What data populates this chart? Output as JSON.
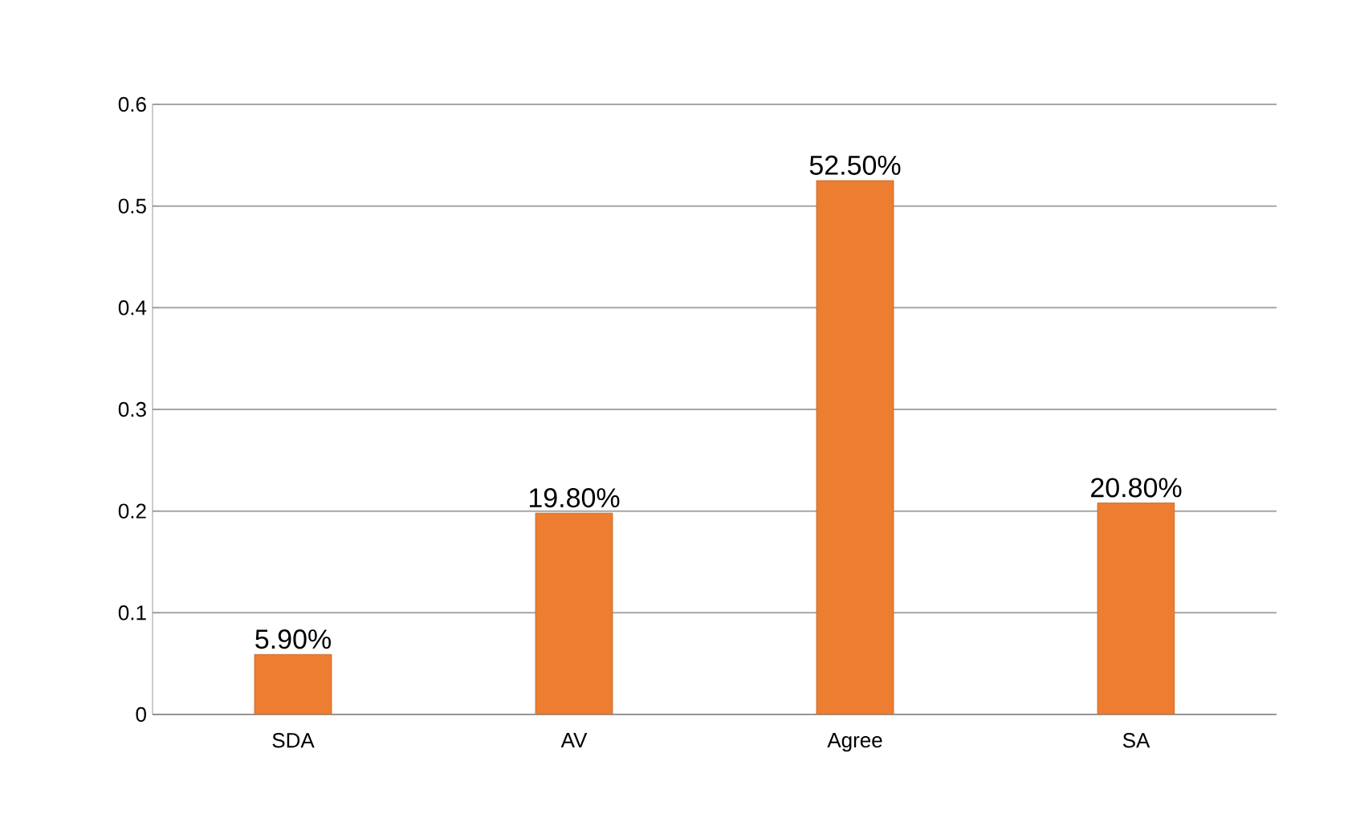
{
  "chart_data": {
    "type": "bar",
    "categories": [
      "SDA",
      "AV",
      "Agree",
      "SA"
    ],
    "values": [
      0.059,
      0.198,
      0.525,
      0.208
    ],
    "value_labels": [
      "5.90%",
      "19.80%",
      "52.50%",
      "20.80%"
    ],
    "color": "#ed7d31",
    "ylim": [
      0,
      0.6
    ],
    "yticks": [
      0,
      0.1,
      0.2,
      0.3,
      0.4,
      0.5,
      0.6
    ],
    "grid": "y"
  }
}
